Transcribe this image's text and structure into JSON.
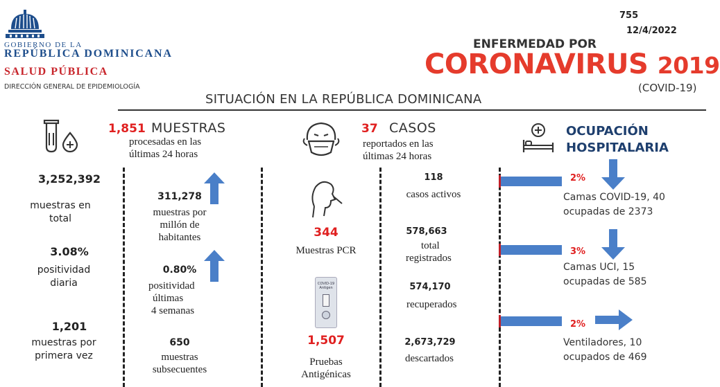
{
  "header": {
    "gov_line1": "GOBIERNO DE LA",
    "gov_line2": "REPÚBLICA DOMINICANA",
    "ministry": "SALUD PÚBLICA",
    "directorate": "DIRECCIÓN GENERAL DE EPIDEMIOLOGÍA",
    "bulletin_number": "755",
    "date": "12/4/2022",
    "title_top": "ENFERMEDAD POR",
    "title_main": "CORONAVIRUS",
    "title_year": "2019",
    "title_sub": "(COVID-19)",
    "subtitle": "SITUACIÓN EN LA REPÚBLICA DOMINICANA"
  },
  "muestras": {
    "count_24h": "1,851",
    "label": "MUESTRAS",
    "desc_line1": "procesadas en las",
    "desc_line2": "últimas 24 horas",
    "total_value": "3,252,392",
    "total_line1": "muestras en",
    "total_line2": "total",
    "positivity_value": "3.08%",
    "positivity_line1": "positividad",
    "positivity_line2": "diaria",
    "first_value": "1,201",
    "first_line1": "muestras por",
    "first_line2": "primera vez",
    "per_million_value": "311,278",
    "per_million_line1": "muestras por",
    "per_million_line2": "millón de",
    "per_million_line3": "habitantes",
    "pos4w_value": "0.80%",
    "pos4w_line1": "positividad",
    "pos4w_line2": "últimas",
    "pos4w_line3": "4 semanas",
    "subsequent_value": "650",
    "subsequent_line1": "muestras",
    "subsequent_line2": "subsecuentes",
    "pcr_value": "344",
    "pcr_label": "Muestras PCR",
    "antigen_value": "1,507",
    "antigen_line1": "Pruebas",
    "antigen_line2": "Antigénicas",
    "test_kit_text": "COVID-19 Antigen"
  },
  "casos": {
    "count_24h": "37",
    "label": "CASOS",
    "desc_line1": "reportados en las",
    "desc_line2": "últimas 24 horas",
    "active_value": "118",
    "active_label": "casos activos",
    "total_value": "578,663",
    "total_line1": "total",
    "total_line2": "registrados",
    "recovered_value": "574,170",
    "recovered_label": "recuperados",
    "discarded_value": "2,673,729",
    "discarded_label": "descartados"
  },
  "ocupacion": {
    "title_line1": "OCUPACIÓN",
    "title_line2": "HOSPITALARIA",
    "covid_beds_pct": "2%",
    "covid_beds_line1": "Camas COVID-19,  40",
    "covid_beds_line2": "ocupadas de 2373",
    "uci_pct": "3%",
    "uci_line1": "Camas UCI,  15",
    "uci_line2": "ocupadas de 585",
    "vent_pct": "2%",
    "vent_line1": "Ventiladores, 10",
    "vent_line2": "ocupados de 469"
  },
  "colors": {
    "accent_red": "#e53b2c",
    "navy": "#1e4e8c",
    "arrow_blue": "#4a7fc8",
    "bar_red_edge": "#c0202a"
  },
  "icons": [
    "capitol-dome-icon",
    "test-tube-icon",
    "blood-drop-icon",
    "masked-face-icon",
    "nasal-swab-icon",
    "antigen-test-kit-icon",
    "hospital-bed-icon",
    "arrow-up-icon",
    "arrow-down-icon",
    "arrow-right-icon"
  ]
}
